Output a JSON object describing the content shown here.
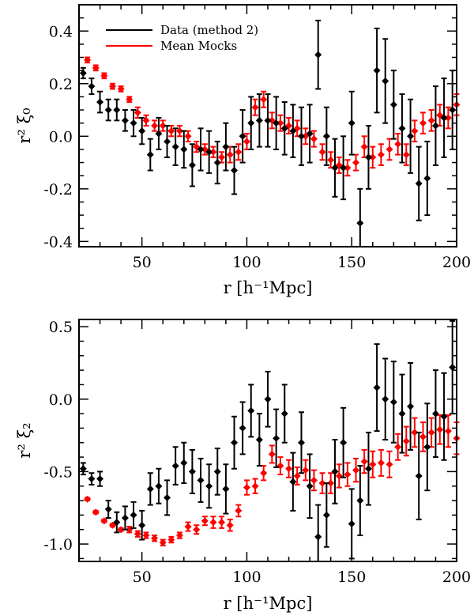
{
  "chart_data": [
    {
      "type": "scatter",
      "panel": "top",
      "xlabel": "r [h⁻¹Mpc]",
      "ylabel": "r² ξ₀",
      "xlim": [
        20,
        200
      ],
      "ylim": [
        -0.42,
        0.5
      ],
      "xticks": [
        50,
        100,
        150,
        200
      ],
      "yticks": [
        -0.4,
        -0.2,
        0.0,
        0.2,
        0.4
      ],
      "xtick_labels": [
        "50",
        "100",
        "150",
        "200"
      ],
      "ytick_labels": [
        "-0.4",
        "-0.2",
        "0.0",
        "0.2",
        "0.4"
      ],
      "legend": {
        "position": "top-left",
        "entries": [
          {
            "label": "Data (method 2)",
            "color": "#000000"
          },
          {
            "label": "Mean Mocks",
            "color": "#ff0000"
          }
        ]
      },
      "series": [
        {
          "name": "Data (method 2)",
          "color": "#000000",
          "x": [
            22,
            26,
            30,
            34,
            38,
            42,
            46,
            50,
            54,
            58,
            62,
            66,
            70,
            74,
            78,
            82,
            86,
            90,
            94,
            98,
            102,
            106,
            110,
            114,
            118,
            122,
            126,
            130,
            134,
            138,
            142,
            146,
            150,
            154,
            158,
            162,
            166,
            170,
            174,
            178,
            182,
            186,
            190,
            194,
            198
          ],
          "y": [
            0.24,
            0.19,
            0.13,
            0.1,
            0.1,
            0.06,
            0.05,
            0.02,
            -0.07,
            0.01,
            -0.02,
            -0.04,
            -0.05,
            -0.11,
            -0.05,
            -0.06,
            -0.1,
            -0.04,
            -0.13,
            0.0,
            0.05,
            0.06,
            0.06,
            0.05,
            0.03,
            0.02,
            0.0,
            0.01,
            0.31,
            0.0,
            -0.12,
            -0.12,
            0.05,
            -0.33,
            -0.08,
            0.25,
            0.21,
            0.12,
            0.03,
            0.0,
            -0.18,
            -0.16,
            0.04,
            0.07,
            0.1
          ],
          "err": [
            0.02,
            0.03,
            0.04,
            0.04,
            0.04,
            0.04,
            0.05,
            0.05,
            0.06,
            0.06,
            0.06,
            0.07,
            0.07,
            0.08,
            0.08,
            0.08,
            0.08,
            0.09,
            0.09,
            0.1,
            0.1,
            0.1,
            0.1,
            0.1,
            0.1,
            0.1,
            0.11,
            0.11,
            0.13,
            0.11,
            0.11,
            0.12,
            0.12,
            0.13,
            0.12,
            0.16,
            0.16,
            0.13,
            0.13,
            0.14,
            0.14,
            0.14,
            0.15,
            0.15,
            0.15
          ]
        },
        {
          "name": "Mean Mocks",
          "color": "#ff0000",
          "x": [
            24,
            28,
            32,
            36,
            40,
            44,
            48,
            52,
            56,
            60,
            64,
            68,
            72,
            76,
            80,
            84,
            88,
            92,
            96,
            100,
            104,
            108,
            112,
            116,
            120,
            124,
            128,
            132,
            136,
            140,
            144,
            148,
            152,
            156,
            160,
            164,
            168,
            172,
            176,
            180,
            184,
            188,
            192,
            196,
            200
          ],
          "y": [
            0.29,
            0.26,
            0.23,
            0.19,
            0.18,
            0.14,
            0.09,
            0.06,
            0.04,
            0.04,
            0.02,
            0.02,
            0.0,
            -0.04,
            -0.05,
            -0.06,
            -0.08,
            -0.07,
            -0.06,
            -0.02,
            0.11,
            0.14,
            0.06,
            0.05,
            0.04,
            0.03,
            0.0,
            -0.01,
            -0.06,
            -0.09,
            -0.11,
            -0.12,
            -0.1,
            -0.04,
            -0.08,
            -0.07,
            -0.05,
            -0.03,
            -0.07,
            0.02,
            0.05,
            0.06,
            0.08,
            0.07,
            0.12
          ],
          "err": [
            0.01,
            0.01,
            0.01,
            0.01,
            0.01,
            0.01,
            0.02,
            0.02,
            0.02,
            0.02,
            0.02,
            0.02,
            0.02,
            0.02,
            0.02,
            0.02,
            0.02,
            0.03,
            0.03,
            0.03,
            0.03,
            0.03,
            0.03,
            0.03,
            0.03,
            0.03,
            0.03,
            0.03,
            0.03,
            0.03,
            0.03,
            0.03,
            0.03,
            0.04,
            0.04,
            0.04,
            0.04,
            0.04,
            0.04,
            0.04,
            0.04,
            0.04,
            0.04,
            0.04,
            0.04
          ]
        }
      ]
    },
    {
      "type": "scatter",
      "panel": "bottom",
      "xlabel": "r [h⁻¹Mpc]",
      "ylabel": "r² ξ₂",
      "xlim": [
        20,
        200
      ],
      "ylim": [
        -1.12,
        0.55
      ],
      "xticks": [
        50,
        100,
        150,
        200
      ],
      "yticks": [
        -1.0,
        -0.5,
        0.0,
        0.5
      ],
      "xtick_labels": [
        "50",
        "100",
        "150",
        "200"
      ],
      "ytick_labels": [
        "-1.0",
        "-0.5",
        "0.0",
        "0.5"
      ],
      "series": [
        {
          "name": "Data (method 2)",
          "color": "#000000",
          "x": [
            22,
            26,
            30,
            34,
            38,
            42,
            46,
            50,
            54,
            58,
            62,
            66,
            70,
            74,
            78,
            82,
            86,
            90,
            94,
            98,
            102,
            106,
            110,
            114,
            118,
            122,
            126,
            130,
            134,
            138,
            142,
            146,
            150,
            154,
            158,
            162,
            166,
            170,
            174,
            178,
            182,
            186,
            190,
            194,
            198
          ],
          "y": [
            -0.48,
            -0.55,
            -0.55,
            -0.76,
            -0.85,
            -0.82,
            -0.8,
            -0.87,
            -0.62,
            -0.6,
            -0.68,
            -0.46,
            -0.44,
            -0.5,
            -0.56,
            -0.6,
            -0.5,
            -0.62,
            -0.3,
            -0.2,
            -0.08,
            -0.28,
            0.0,
            -0.27,
            -0.1,
            -0.57,
            -0.3,
            -0.6,
            -0.95,
            -0.8,
            -0.5,
            -0.3,
            -0.86,
            -0.7,
            -0.48,
            0.08,
            0.0,
            -0.02,
            -0.1,
            -0.05,
            -0.53,
            -0.33,
            -0.1,
            -0.12,
            0.22
          ],
          "err": [
            0.04,
            0.04,
            0.05,
            0.06,
            0.07,
            0.08,
            0.09,
            0.1,
            0.11,
            0.12,
            0.12,
            0.13,
            0.14,
            0.15,
            0.15,
            0.15,
            0.16,
            0.17,
            0.18,
            0.18,
            0.18,
            0.18,
            0.19,
            0.2,
            0.2,
            0.2,
            0.21,
            0.22,
            0.22,
            0.22,
            0.22,
            0.24,
            0.24,
            0.24,
            0.25,
            0.3,
            0.28,
            0.28,
            0.27,
            0.3,
            0.3,
            0.3,
            0.3,
            0.3,
            0.32
          ]
        },
        {
          "name": "Mean Mocks",
          "color": "#ff0000",
          "x": [
            24,
            28,
            32,
            36,
            40,
            44,
            48,
            52,
            56,
            60,
            64,
            68,
            72,
            76,
            80,
            84,
            88,
            92,
            96,
            100,
            104,
            108,
            112,
            116,
            120,
            124,
            128,
            132,
            136,
            140,
            144,
            148,
            152,
            156,
            160,
            164,
            168,
            172,
            176,
            180,
            184,
            188,
            192,
            196,
            200
          ],
          "y": [
            -0.69,
            -0.78,
            -0.84,
            -0.87,
            -0.9,
            -0.9,
            -0.93,
            -0.94,
            -0.96,
            -0.99,
            -0.97,
            -0.94,
            -0.88,
            -0.9,
            -0.84,
            -0.85,
            -0.85,
            -0.87,
            -0.77,
            -0.61,
            -0.6,
            -0.51,
            -0.38,
            -0.46,
            -0.48,
            -0.53,
            -0.49,
            -0.56,
            -0.58,
            -0.58,
            -0.53,
            -0.52,
            -0.49,
            -0.43,
            -0.45,
            -0.44,
            -0.45,
            -0.33,
            -0.29,
            -0.23,
            -0.26,
            -0.23,
            -0.21,
            -0.22,
            -0.27
          ],
          "err": [
            0.01,
            0.01,
            0.01,
            0.01,
            0.01,
            0.02,
            0.02,
            0.02,
            0.02,
            0.02,
            0.02,
            0.02,
            0.03,
            0.03,
            0.03,
            0.04,
            0.04,
            0.04,
            0.04,
            0.05,
            0.05,
            0.05,
            0.06,
            0.06,
            0.06,
            0.06,
            0.07,
            0.07,
            0.07,
            0.07,
            0.08,
            0.08,
            0.08,
            0.08,
            0.09,
            0.09,
            0.09,
            0.09,
            0.1,
            0.1,
            0.1,
            0.1,
            0.1,
            0.11,
            0.11
          ]
        }
      ]
    }
  ]
}
